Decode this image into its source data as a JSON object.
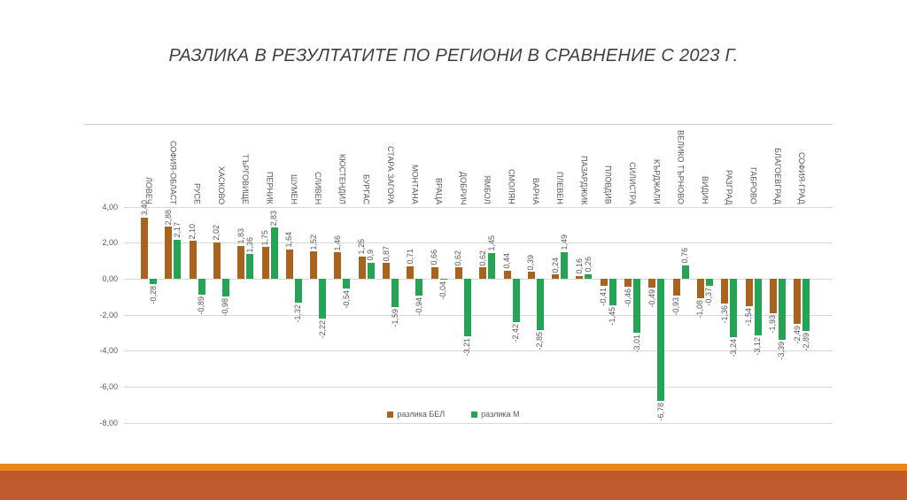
{
  "slide": {
    "footer_stripe_color": "#E9871C",
    "footer_band_color": "#BE5A2B",
    "background_color": "#FFFFFF",
    "title_color": "#404040"
  },
  "chart_data": {
    "type": "bar",
    "title": "РАЗЛИКА В РЕЗУЛТАТИТЕ ПО РЕГИОНИ В СРАВНЕНИЕ С 2023 Г.",
    "categories": [
      "ЛОВЕЧ",
      "СОФИЯ-ОБЛАСТ",
      "РУСЕ",
      "ХАСКОВО",
      "ТЪРГОВИЩЕ",
      "ПЕРНИК",
      "ШУМЕН",
      "СЛИВЕН",
      "КЮСТЕНДИЛ",
      "БУРГАС",
      "СТАРА ЗАГОРА",
      "МОНТАНА",
      "ВРАЦА",
      "ДОБРИЧ",
      "ЯМБОЛ",
      "СМОЛЯН",
      "ВАРНА",
      "ПЛЕВЕН",
      "ПАЗАРДЖИК",
      "ПЛОВДИВ",
      "СИЛИСТРА",
      "КЪРДЖАЛИ",
      "ВЕЛИКО ТЪРНОВО",
      "ВИДИН",
      "РАЗГРАД",
      "ГАБРОВО",
      "БЛАГОЕВГРАД",
      "СОФИЯ-ГРАД"
    ],
    "series": [
      {
        "name": "разлика БЕЛ",
        "color": "#A8641E",
        "values": [
          3.4,
          2.88,
          2.1,
          2.02,
          1.83,
          1.75,
          1.64,
          1.52,
          1.46,
          1.25,
          0.87,
          0.71,
          0.66,
          0.62,
          0.62,
          0.44,
          0.39,
          0.24,
          0.16,
          -0.41,
          -0.46,
          -0.49,
          -0.93,
          -1.08,
          -1.36,
          -1.54,
          -1.93,
          -2.49
        ],
        "labels": [
          "3,40",
          "2,88",
          "2,10",
          "2,02",
          "1,83",
          "1,75",
          "1,64",
          "1,52",
          "1,46",
          "1,25",
          "0,87",
          "0,71",
          "0,66",
          "0,62",
          "0,62",
          "0,44",
          "0,39",
          "0,24",
          "0,16",
          "-0,41",
          "-0,46",
          "-0,49",
          "-0,93",
          "-1,08",
          "-1,36",
          "-1,54",
          "-1,93",
          "-2,49"
        ]
      },
      {
        "name": "разлика М",
        "color": "#24A454",
        "values": [
          -0.28,
          2.17,
          -0.89,
          -0.98,
          1.36,
          2.83,
          -1.32,
          -2.22,
          -0.54,
          0.9,
          -1.59,
          -0.94,
          -0.04,
          -3.21,
          1.45,
          -2.42,
          -2.85,
          1.49,
          0.26,
          -1.45,
          -3.01,
          -6.78,
          0.76,
          -0.37,
          -3.24,
          -3.12,
          -3.39,
          -2.89
        ],
        "labels": [
          "-0,28",
          "2,17",
          "-0,89",
          "-0,98",
          "1,36",
          "2,83",
          "-1,32",
          "-2,22",
          "-0,54",
          "0,9",
          "-1,59",
          "-0,94",
          "-0,04",
          "-3,21",
          "1,45",
          "-2,42",
          "-2,85",
          "1,49",
          "0,26",
          "-1,45",
          "-3,01",
          "-6,78",
          "0,76",
          "-0,37",
          "-3,24",
          "-3,12",
          "-3,39",
          "-2,89"
        ]
      }
    ],
    "y_axis": {
      "min": -8,
      "max": 4,
      "ticks": [
        {
          "value": 4,
          "label": "4,00"
        },
        {
          "value": 2,
          "label": "2,00"
        },
        {
          "value": 0,
          "label": "0,00"
        },
        {
          "value": -2,
          "label": "-2,00"
        },
        {
          "value": -4,
          "label": "-4,00"
        },
        {
          "value": -6,
          "label": "-6,00"
        },
        {
          "value": -8,
          "label": "-8,00"
        }
      ]
    },
    "grid": true,
    "gridline_color": "#D9D9D9",
    "label_color": "#595959",
    "legend_position": "bottom",
    "xlabel": "",
    "ylabel": ""
  }
}
